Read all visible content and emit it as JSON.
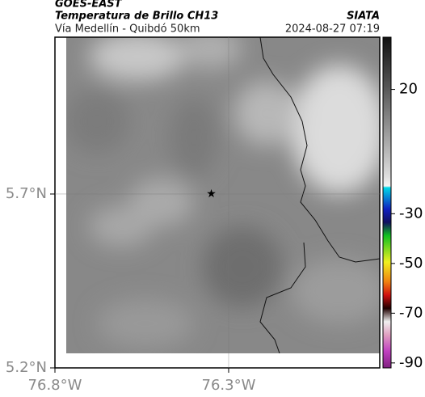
{
  "header": {
    "satellite": "GOES-EAST",
    "title": "Temperatura de Brillo CH13",
    "subtitle": "Vía Medellín - Quibdó 50km",
    "source": "SIATA",
    "datetime": "2024-08-27 07:19"
  },
  "map": {
    "xlim": [
      -76.8,
      -75.865
    ],
    "ylim": [
      5.2,
      6.151
    ],
    "xticks": [
      {
        "value": -76.8,
        "label": "76.8°W"
      },
      {
        "value": -76.3,
        "label": "76.3°W"
      }
    ],
    "yticks": [
      {
        "value": 5.2,
        "label": "5.2°N"
      },
      {
        "value": 5.7,
        "label": "5.7°N"
      }
    ],
    "marker": {
      "lon": -76.35,
      "lat": 5.7
    }
  },
  "colorbar": {
    "lim": [
      -92,
      41
    ],
    "ticks": [
      20,
      -30,
      -50,
      -70,
      -90
    ]
  }
}
